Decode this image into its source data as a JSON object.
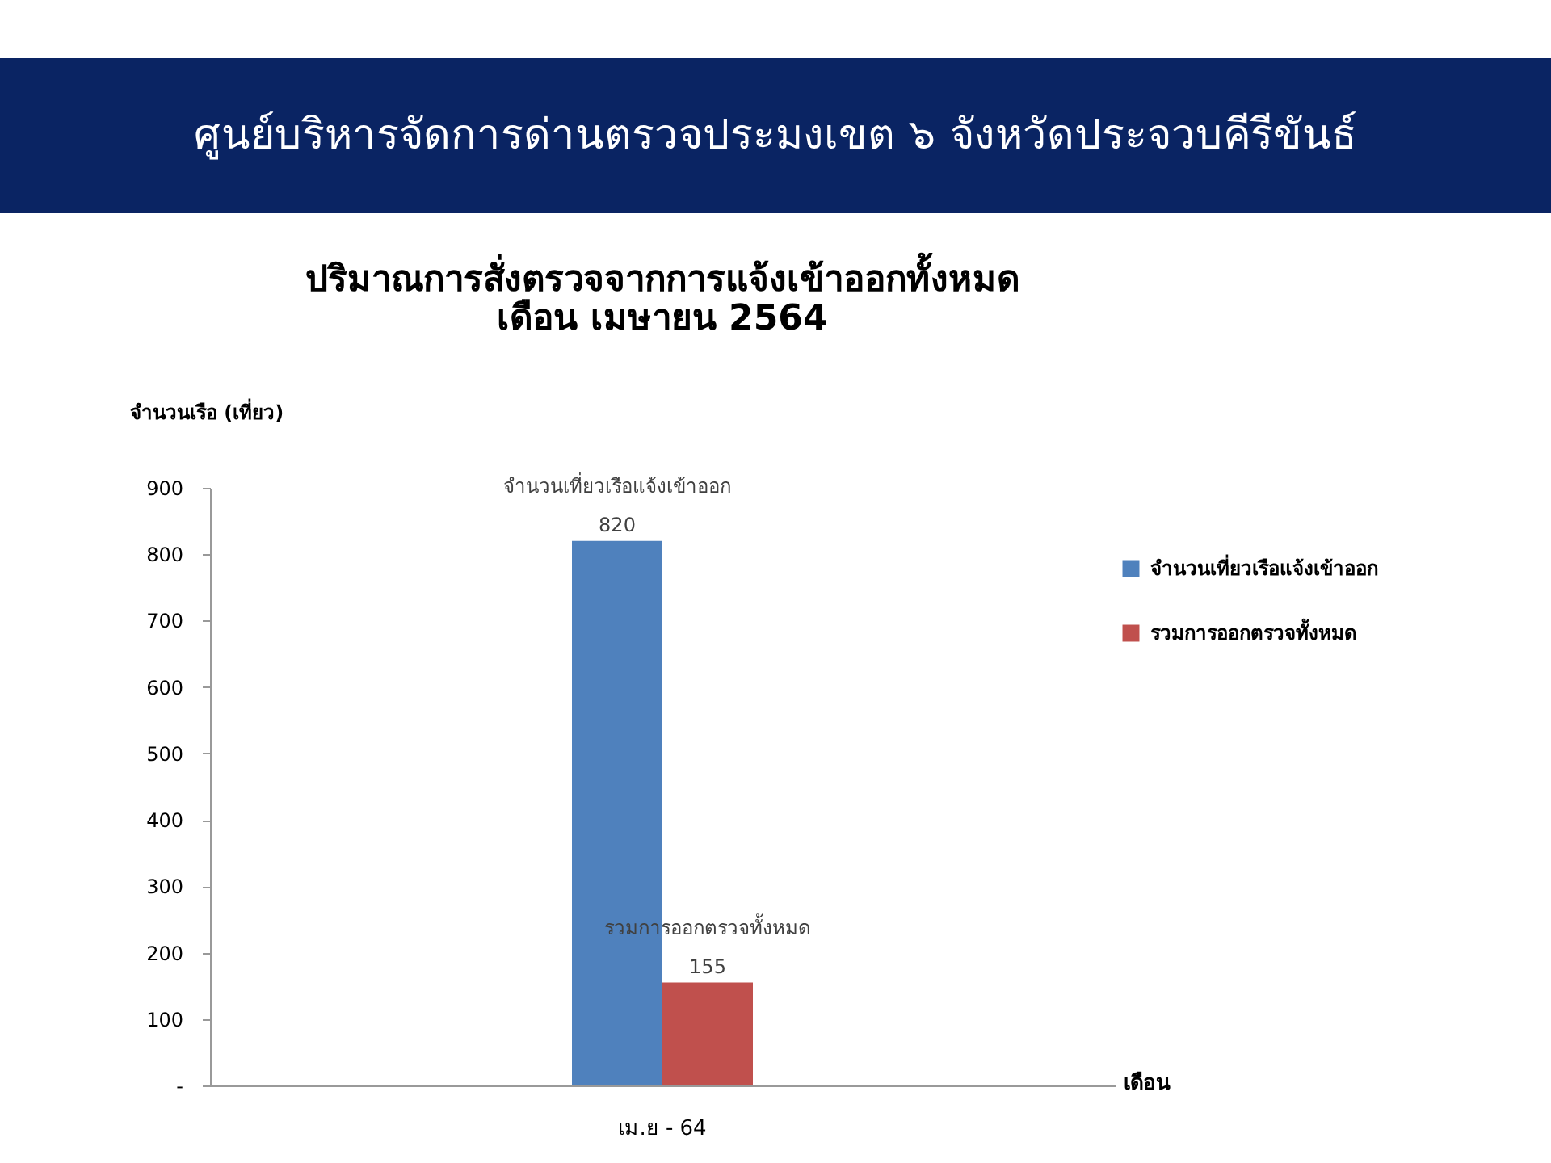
{
  "chart_data": {
    "type": "bar",
    "title": "ศูนย์บริหารจัดการด่านตรวจประมงเขต ๖ จังหวัดประจวบคีรีขันธ์",
    "subtitle": "ปริมาณการสั่งตรวจจากการแจ้งเข้าออกทั้งหมด\nเดือน เมษายน 2564",
    "xlabel": "เดือน",
    "ylabel": "จำนวนเรือ (เที่ยว)",
    "categories": [
      "เม.ย - 64"
    ],
    "series": [
      {
        "name": "จำนวนเที่ยวเรือแจ้งเข้าออก",
        "color": "#4f81bd",
        "values": [
          820
        ]
      },
      {
        "name": "รวมการออกตรวจทั้งหมด",
        "color": "#c0504d",
        "values": [
          155
        ]
      }
    ],
    "ylim": [
      0,
      900
    ],
    "yticks": [
      {
        "value": 0,
        "label": "-"
      },
      100,
      200,
      300,
      400,
      500,
      600,
      700,
      800,
      900
    ],
    "data_labels": true,
    "legend": "right",
    "grid": false
  }
}
